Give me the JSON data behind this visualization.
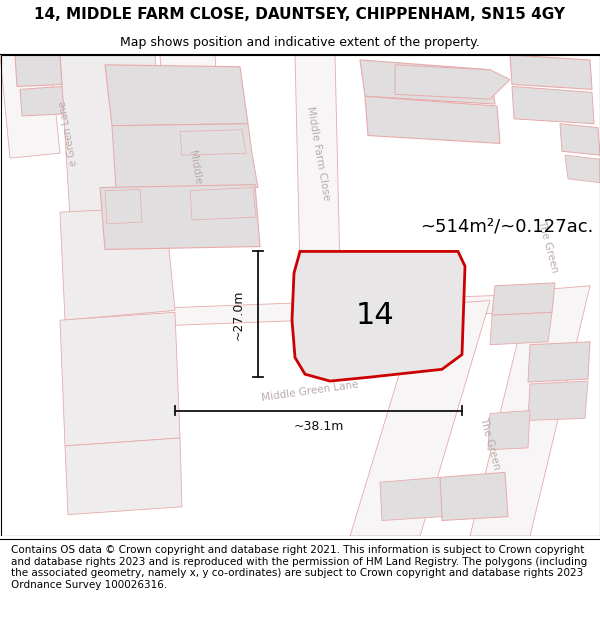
{
  "title": "14, MIDDLE FARM CLOSE, DAUNTSEY, CHIPPENHAM, SN15 4GY",
  "subtitle": "Map shows position and indicative extent of the property.",
  "area_label": "~514m²/~0.127ac.",
  "plot_number": "14",
  "dim_width": "~38.1m",
  "dim_height": "~27.0m",
  "map_bg": "#f7f5f5",
  "building_fill": "#e0dedf",
  "building_edge": "#e8aaaa",
  "road_fill": "#f7f5f5",
  "road_edge": "#e8aaaa",
  "parcel_fill": "#eeecec",
  "parcel_edge": "#e8aaaa",
  "plot_fill": "#e8e6e6",
  "plot_edge": "#cc0000",
  "plot_edge_width": 2.0,
  "label_color": "#bbaaaa",
  "dim_color": "#111111",
  "footer_text": "Contains OS data © Crown copyright and database right 2021. This information is subject to Crown copyright and database rights 2023 and is reproduced with the permission of HM Land Registry. The polygons (including the associated geometry, namely x, y co-ordinates) are subject to Crown copyright and database rights 2023 Ordnance Survey 100026316.",
  "title_fontsize": 11,
  "subtitle_fontsize": 9,
  "footer_fontsize": 7.5,
  "area_fontsize": 13,
  "plot_num_fontsize": 22,
  "road_label_fontsize": 7.5,
  "dim_fontsize": 9
}
